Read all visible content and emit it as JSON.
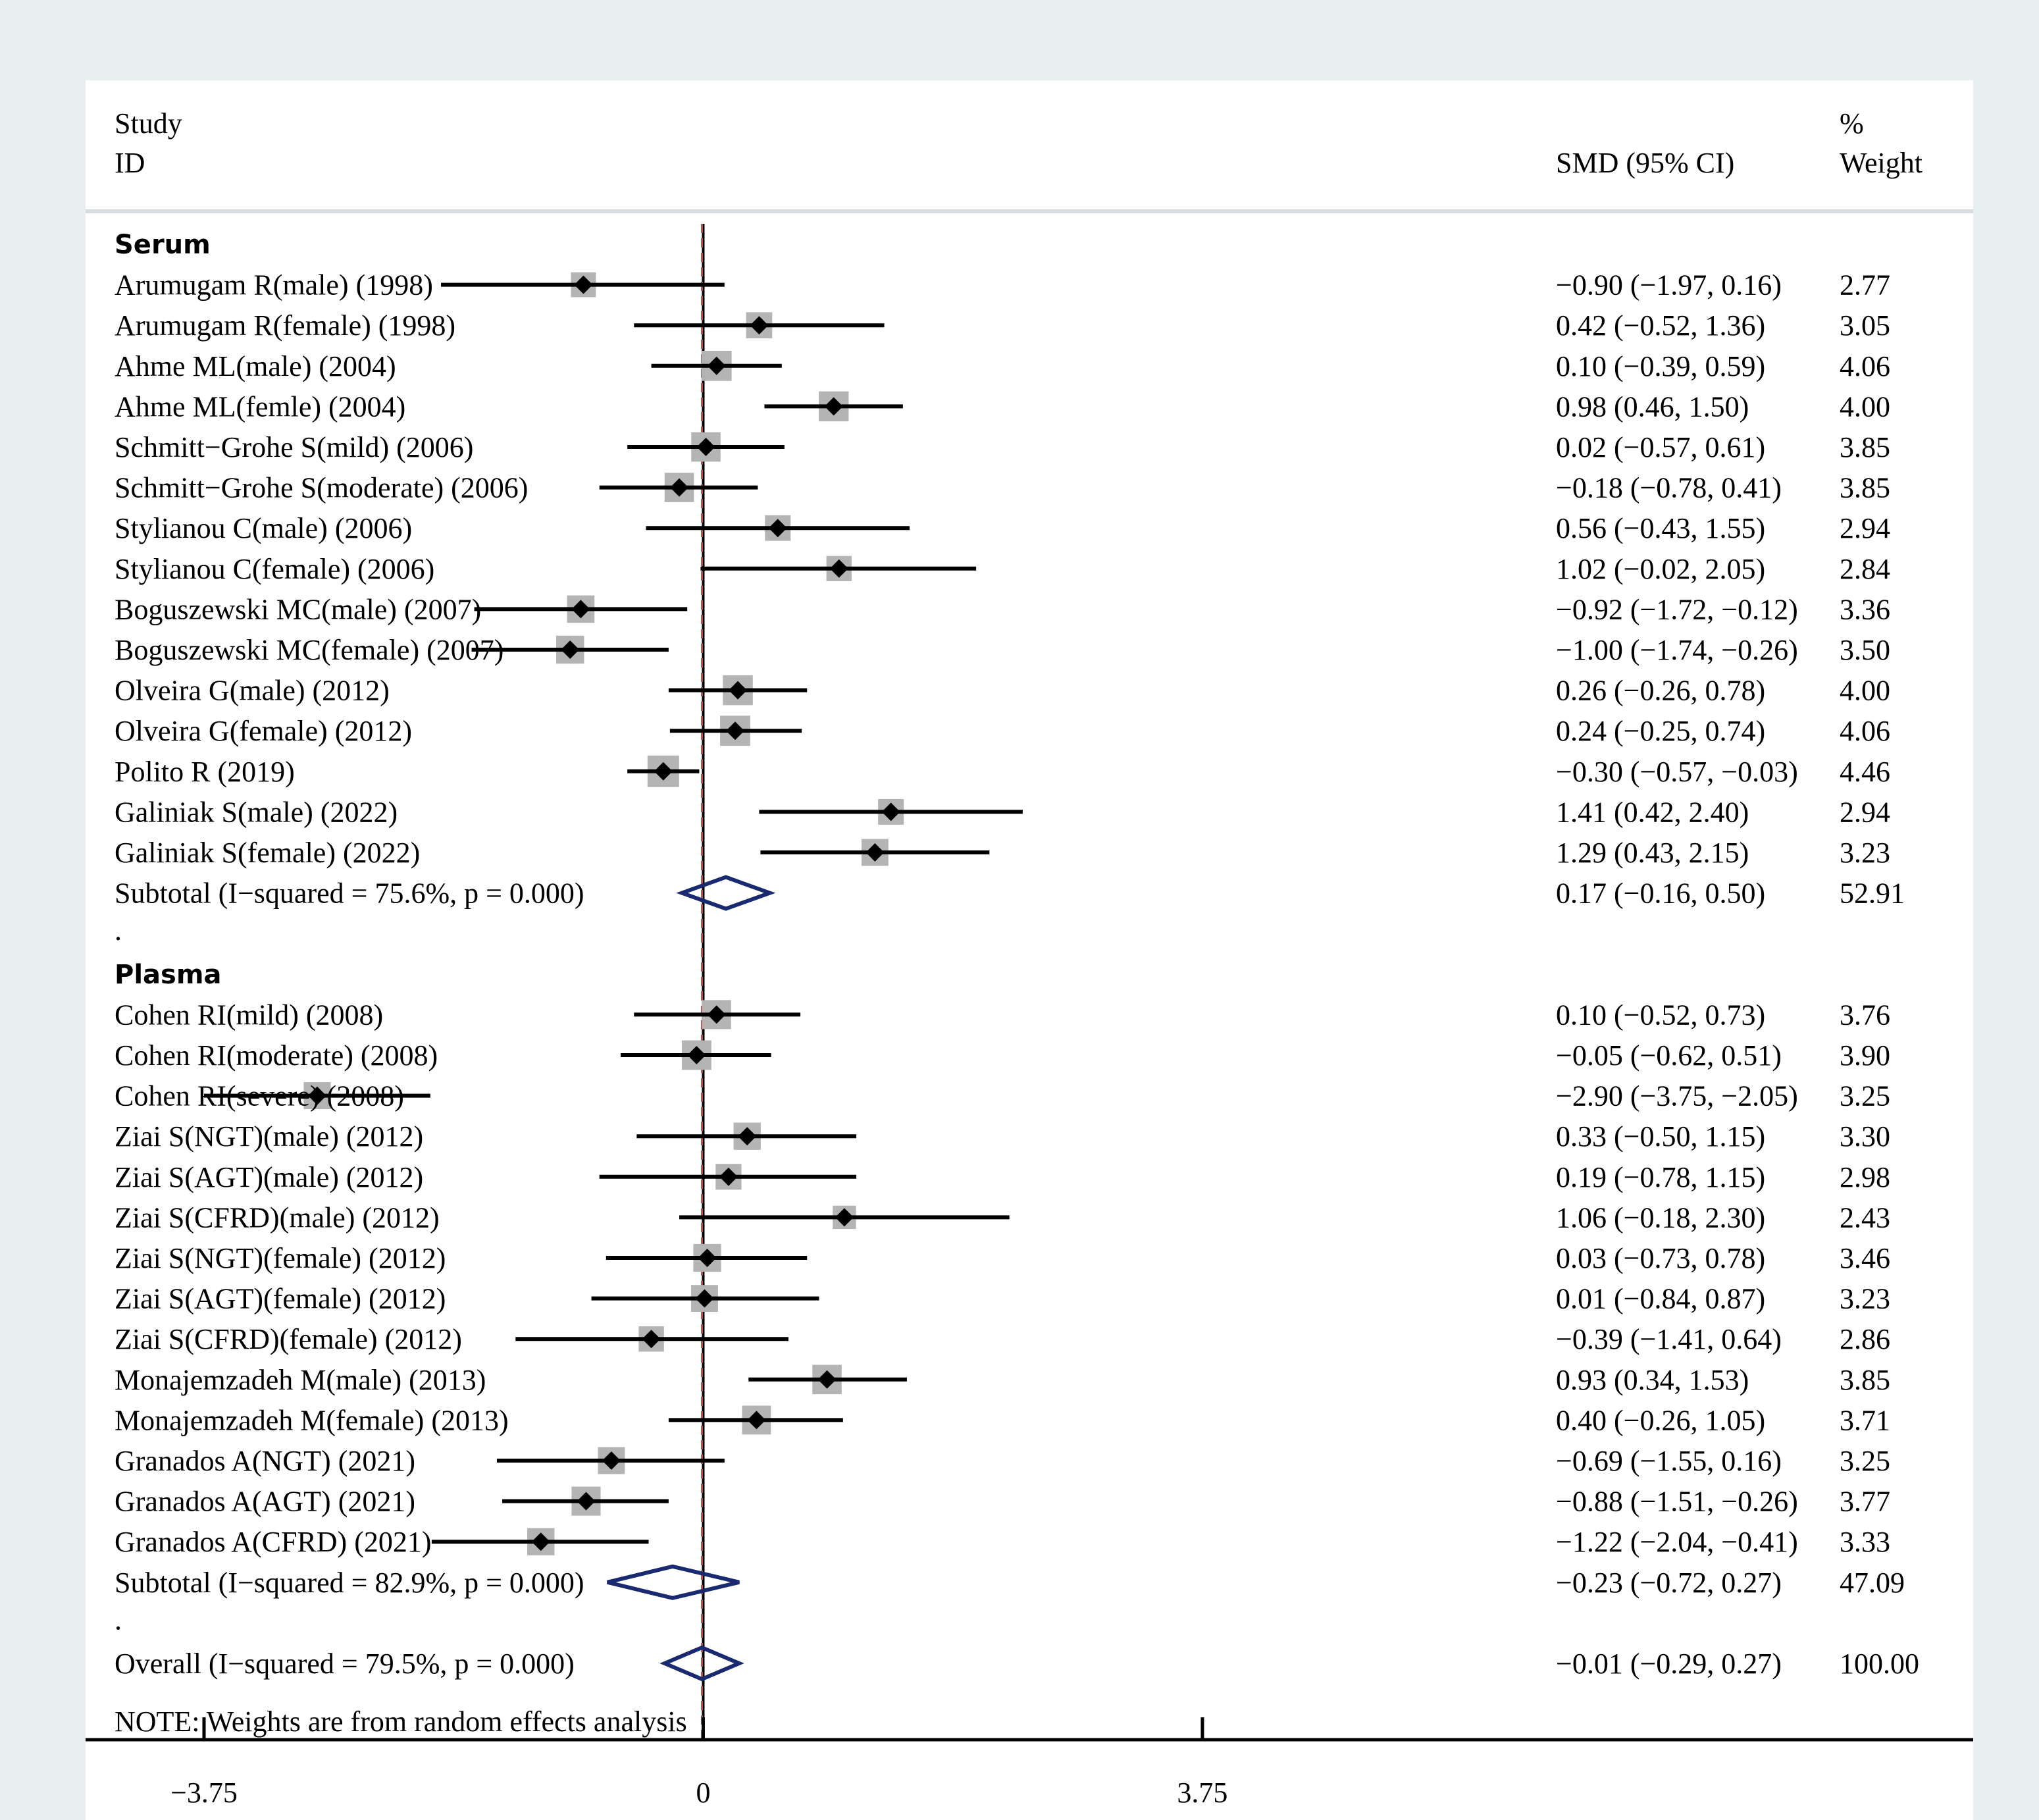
{
  "chart_data": {
    "type": "forest",
    "headers": {
      "study_line1": "Study",
      "study_line2": "ID",
      "effect": "SMD (95% CI)",
      "weight_line1": "%",
      "weight_line2": "Weight"
    },
    "axis": {
      "xlim": [
        -4.64,
        9.54
      ],
      "ticks": [
        -3.75,
        0,
        3.75
      ],
      "tick_labels": [
        "−3.75",
        "0",
        "3.75"
      ]
    },
    "overall_effect": -0.01,
    "note": "NOTE: Weights are from random effects analysis",
    "groups": [
      {
        "name": "Serum",
        "studies": [
          {
            "label": "Arumugam R(male) (1998)",
            "est": -0.9,
            "lo": -1.97,
            "hi": 0.16,
            "text": "−0.90 (−1.97, 0.16)",
            "weight": 2.77,
            "weight_text": "2.77"
          },
          {
            "label": "Arumugam R(female) (1998)",
            "est": 0.42,
            "lo": -0.52,
            "hi": 1.36,
            "text": "0.42 (−0.52, 1.36)",
            "weight": 3.05,
            "weight_text": "3.05"
          },
          {
            "label": "Ahme ML(male) (2004)",
            "est": 0.1,
            "lo": -0.39,
            "hi": 0.59,
            "text": "0.10 (−0.39, 0.59)",
            "weight": 4.06,
            "weight_text": "4.06"
          },
          {
            "label": "Ahme ML(femle) (2004)",
            "est": 0.98,
            "lo": 0.46,
            "hi": 1.5,
            "text": "0.98 (0.46, 1.50)",
            "weight": 4.0,
            "weight_text": "4.00"
          },
          {
            "label": "Schmitt−Grohe S(mild) (2006)",
            "est": 0.02,
            "lo": -0.57,
            "hi": 0.61,
            "text": "0.02 (−0.57, 0.61)",
            "weight": 3.85,
            "weight_text": "3.85"
          },
          {
            "label": "Schmitt−Grohe S(moderate) (2006)",
            "est": -0.18,
            "lo": -0.78,
            "hi": 0.41,
            "text": "−0.18 (−0.78, 0.41)",
            "weight": 3.85,
            "weight_text": "3.85"
          },
          {
            "label": "Stylianou C(male) (2006)",
            "est": 0.56,
            "lo": -0.43,
            "hi": 1.55,
            "text": "0.56 (−0.43, 1.55)",
            "weight": 2.94,
            "weight_text": "2.94"
          },
          {
            "label": "Stylianou C(female) (2006)",
            "est": 1.02,
            "lo": -0.02,
            "hi": 2.05,
            "text": "1.02 (−0.02, 2.05)",
            "weight": 2.84,
            "weight_text": "2.84"
          },
          {
            "label": "Boguszewski MC(male) (2007)",
            "est": -0.92,
            "lo": -1.72,
            "hi": -0.12,
            "text": "−0.92 (−1.72, −0.12)",
            "weight": 3.36,
            "weight_text": "3.36"
          },
          {
            "label": "Boguszewski MC(female) (2007)",
            "est": -1.0,
            "lo": -1.74,
            "hi": -0.26,
            "text": "−1.00 (−1.74, −0.26)",
            "weight": 3.5,
            "weight_text": "3.50"
          },
          {
            "label": "Olveira G(male) (2012)",
            "est": 0.26,
            "lo": -0.26,
            "hi": 0.78,
            "text": "0.26 (−0.26, 0.78)",
            "weight": 4.0,
            "weight_text": "4.00"
          },
          {
            "label": "Olveira G(female) (2012)",
            "est": 0.24,
            "lo": -0.25,
            "hi": 0.74,
            "text": "0.24 (−0.25, 0.74)",
            "weight": 4.06,
            "weight_text": "4.06"
          },
          {
            "label": "Polito R (2019)",
            "est": -0.3,
            "lo": -0.57,
            "hi": -0.03,
            "text": "−0.30 (−0.57, −0.03)",
            "weight": 4.46,
            "weight_text": "4.46"
          },
          {
            "label": "Galiniak S(male) (2022)",
            "est": 1.41,
            "lo": 0.42,
            "hi": 2.4,
            "text": "1.41 (0.42, 2.40)",
            "weight": 2.94,
            "weight_text": "2.94"
          },
          {
            "label": "Galiniak S(female) (2022)",
            "est": 1.29,
            "lo": 0.43,
            "hi": 2.15,
            "text": "1.29 (0.43, 2.15)",
            "weight": 3.23,
            "weight_text": "3.23"
          }
        ],
        "subtotal": {
          "label": "Subtotal  (I−squared = 75.6%, p = 0.000)",
          "est": 0.17,
          "lo": -0.16,
          "hi": 0.5,
          "text": "0.17 (−0.16, 0.50)",
          "weight_text": "52.91"
        }
      },
      {
        "name": "Plasma",
        "studies": [
          {
            "label": "Cohen RI(mild) (2008)",
            "est": 0.1,
            "lo": -0.52,
            "hi": 0.73,
            "text": "0.10 (−0.52, 0.73)",
            "weight": 3.76,
            "weight_text": "3.76"
          },
          {
            "label": "Cohen RI(moderate) (2008)",
            "est": -0.05,
            "lo": -0.62,
            "hi": 0.51,
            "text": "−0.05 (−0.62, 0.51)",
            "weight": 3.9,
            "weight_text": "3.90"
          },
          {
            "label": "Cohen RI(severe) (2008)",
            "est": -2.9,
            "lo": -3.75,
            "hi": -2.05,
            "text": "−2.90 (−3.75, −2.05)",
            "weight": 3.25,
            "weight_text": "3.25"
          },
          {
            "label": "Ziai S(NGT)(male) (2012)",
            "est": 0.33,
            "lo": -0.5,
            "hi": 1.15,
            "text": "0.33 (−0.50, 1.15)",
            "weight": 3.3,
            "weight_text": "3.30"
          },
          {
            "label": "Ziai S(AGT)(male) (2012)",
            "est": 0.19,
            "lo": -0.78,
            "hi": 1.15,
            "text": "0.19 (−0.78, 1.15)",
            "weight": 2.98,
            "weight_text": "2.98"
          },
          {
            "label": "Ziai S(CFRD)(male) (2012)",
            "est": 1.06,
            "lo": -0.18,
            "hi": 2.3,
            "text": "1.06 (−0.18, 2.30)",
            "weight": 2.43,
            "weight_text": "2.43"
          },
          {
            "label": "Ziai S(NGT)(female) (2012)",
            "est": 0.03,
            "lo": -0.73,
            "hi": 0.78,
            "text": "0.03 (−0.73, 0.78)",
            "weight": 3.46,
            "weight_text": "3.46"
          },
          {
            "label": "Ziai S(AGT)(female) (2012)",
            "est": 0.01,
            "lo": -0.84,
            "hi": 0.87,
            "text": "0.01 (−0.84, 0.87)",
            "weight": 3.23,
            "weight_text": "3.23"
          },
          {
            "label": "Ziai S(CFRD)(female) (2012)",
            "est": -0.39,
            "lo": -1.41,
            "hi": 0.64,
            "text": "−0.39 (−1.41, 0.64)",
            "weight": 2.86,
            "weight_text": "2.86"
          },
          {
            "label": "Monajemzadeh M(male) (2013)",
            "est": 0.93,
            "lo": 0.34,
            "hi": 1.53,
            "text": "0.93 (0.34, 1.53)",
            "weight": 3.85,
            "weight_text": "3.85"
          },
          {
            "label": "Monajemzadeh M(female) (2013)",
            "est": 0.4,
            "lo": -0.26,
            "hi": 1.05,
            "text": "0.40 (−0.26, 1.05)",
            "weight": 3.71,
            "weight_text": "3.71"
          },
          {
            "label": "Granados A(NGT) (2021)",
            "est": -0.69,
            "lo": -1.55,
            "hi": 0.16,
            "text": "−0.69 (−1.55, 0.16)",
            "weight": 3.25,
            "weight_text": "3.25"
          },
          {
            "label": "Granados A(AGT) (2021)",
            "est": -0.88,
            "lo": -1.51,
            "hi": -0.26,
            "text": "−0.88 (−1.51, −0.26)",
            "weight": 3.77,
            "weight_text": "3.77"
          },
          {
            "label": "Granados A(CFRD) (2021)",
            "est": -1.22,
            "lo": -2.04,
            "hi": -0.41,
            "text": "−1.22 (−2.04, −0.41)",
            "weight": 3.33,
            "weight_text": "3.33"
          }
        ],
        "subtotal": {
          "label": "Subtotal  (I−squared = 82.9%, p = 0.000)",
          "est": -0.23,
          "lo": -0.72,
          "hi": 0.27,
          "text": "−0.23 (−0.72, 0.27)",
          "weight_text": "47.09"
        }
      }
    ],
    "overall": {
      "label": "Overall  (I−squared = 79.5%, p = 0.000)",
      "est": -0.01,
      "lo": -0.29,
      "hi": 0.27,
      "text": "−0.01 (−0.29, 0.27)",
      "weight_text": "100.00"
    },
    "separator": "."
  },
  "colors": {
    "background": "#e8eff1",
    "panel": "#ffffff",
    "ci_line": "#000000",
    "weight_box": "#b4b4b4",
    "point": "#000000",
    "diamond": "#1a2a70",
    "null_line": "#000000",
    "overall_line": "#c0504d",
    "header_rule": "#d8dde0"
  }
}
